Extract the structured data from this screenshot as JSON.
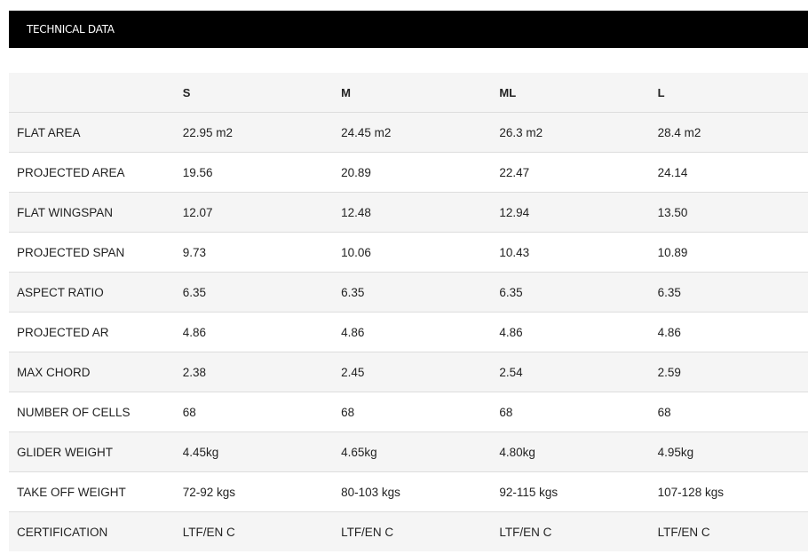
{
  "title": "TECHNICAL DATA",
  "columns": [
    "",
    "S",
    "M",
    "ML",
    "L"
  ],
  "rows": [
    [
      "FLAT AREA",
      "22.95 m2",
      "24.45 m2",
      "26.3 m2",
      "28.4 m2"
    ],
    [
      "PROJECTED AREA",
      "19.56",
      "20.89",
      "22.47",
      "24.14"
    ],
    [
      "FLAT WINGSPAN",
      "12.07",
      "12.48",
      "12.94",
      "13.50"
    ],
    [
      "PROJECTED SPAN",
      "9.73",
      "10.06",
      "10.43",
      "10.89"
    ],
    [
      "ASPECT RATIO",
      "6.35",
      "6.35",
      "6.35",
      "6.35"
    ],
    [
      "PROJECTED AR",
      "4.86",
      "4.86",
      "4.86",
      "4.86"
    ],
    [
      "MAX CHORD",
      "2.38",
      "2.45",
      "2.54",
      "2.59"
    ],
    [
      "NUMBER OF CELLS",
      "68",
      "68",
      "68",
      "68"
    ],
    [
      "GLIDER WEIGHT",
      "4.45kg",
      "4.65kg",
      "4.80kg",
      "4.95kg"
    ],
    [
      "TAKE OFF WEIGHT",
      "72-92 kgs",
      "80-103 kgs",
      "92-115 kgs",
      "107-128 kgs"
    ],
    [
      "CERTIFICATION",
      "LTF/EN C",
      "LTF/EN C",
      "LTF/EN C",
      "LTF/EN C"
    ]
  ]
}
